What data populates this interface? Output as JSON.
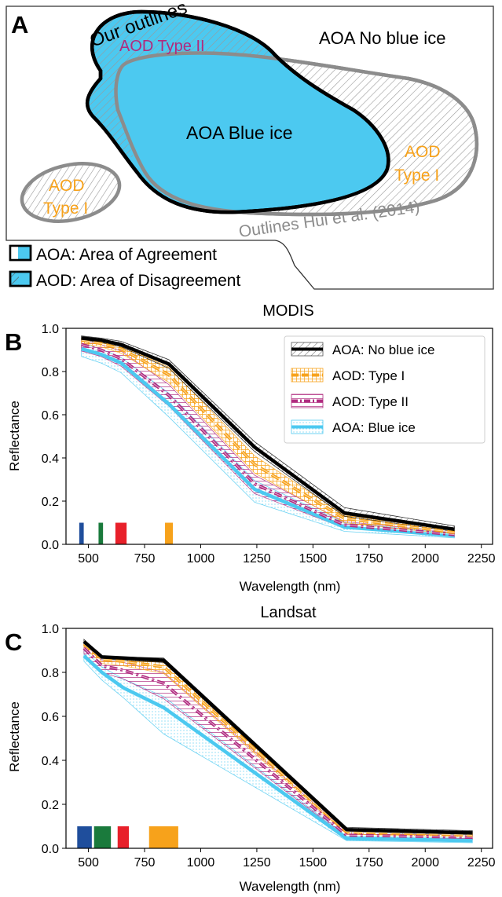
{
  "panel_a": {
    "letter": "A",
    "our_outlines": "Our outlines",
    "aod_type2": "AOD Type II",
    "aoa_no_blue_ice": "AOA No blue ice",
    "aoa_blue_ice": "AOA Blue ice",
    "aod_type1_right_line1": "AOD",
    "aod_type1_right_line2": "Type I",
    "aod_type1_left_line1": "AOD",
    "aod_type1_left_line2": "Type I",
    "outlines_hui": "Outlines Hui et al. (2014)",
    "legend_aoa": "AOA: Area of Agreement",
    "legend_aod": "AOD: Area of Disagreement",
    "colors": {
      "blue_ice": "#4cc9f0",
      "outline_ours": "#000000",
      "outline_hui": "#8c8c8c",
      "type1_text": "#f7a21b",
      "type2_text": "#b02a7f"
    }
  },
  "chart_data": [
    {
      "type": "line",
      "letter": "B",
      "title": "MODIS",
      "xlabel": "Wavelength (nm)",
      "ylabel": "Reflectance",
      "xlim": [
        400,
        2300
      ],
      "ylim": [
        0.0,
        1.0
      ],
      "xticks": [
        500,
        750,
        1000,
        1250,
        1500,
        1750,
        2000,
        2250
      ],
      "yticks": [
        0.0,
        0.2,
        0.4,
        0.6,
        0.8,
        1.0
      ],
      "x": [
        469,
        555,
        645,
        858,
        1240,
        1640,
        2130
      ],
      "series": [
        {
          "name": "AOA: No blue ice",
          "color": "#000000",
          "style": "solid",
          "values": [
            0.955,
            0.945,
            0.925,
            0.835,
            0.45,
            0.145,
            0.07
          ],
          "band_lo": [
            0.945,
            0.935,
            0.915,
            0.815,
            0.43,
            0.13,
            0.06
          ],
          "band_hi": [
            0.965,
            0.955,
            0.94,
            0.855,
            0.475,
            0.17,
            0.085
          ]
        },
        {
          "name": "AOD: Type I",
          "color": "#f7a21b",
          "style": "dashed",
          "values": [
            0.945,
            0.93,
            0.905,
            0.785,
            0.37,
            0.12,
            0.055
          ],
          "band_lo": [
            0.93,
            0.915,
            0.885,
            0.75,
            0.33,
            0.1,
            0.045
          ],
          "band_hi": [
            0.955,
            0.94,
            0.92,
            0.82,
            0.41,
            0.135,
            0.065
          ]
        },
        {
          "name": "AOD: Type II",
          "color": "#b02a7f",
          "style": "dashdot",
          "values": [
            0.925,
            0.9,
            0.86,
            0.69,
            0.28,
            0.09,
            0.045
          ],
          "band_lo": [
            0.895,
            0.87,
            0.825,
            0.64,
            0.235,
            0.075,
            0.035
          ],
          "band_hi": [
            0.945,
            0.925,
            0.895,
            0.74,
            0.32,
            0.105,
            0.055
          ]
        },
        {
          "name": "AOA: Blue ice",
          "color": "#4cc9f0",
          "style": "solid",
          "values": [
            0.905,
            0.88,
            0.84,
            0.65,
            0.255,
            0.08,
            0.04
          ],
          "band_lo": [
            0.87,
            0.84,
            0.795,
            0.59,
            0.195,
            0.06,
            0.03
          ],
          "band_hi": [
            0.93,
            0.905,
            0.865,
            0.7,
            0.295,
            0.1,
            0.05
          ]
        }
      ],
      "bands": [
        {
          "start": 459,
          "end": 479,
          "color": "#1f4e9c"
        },
        {
          "start": 545,
          "end": 565,
          "color": "#1a7a3c"
        },
        {
          "start": 620,
          "end": 670,
          "color": "#e8202a"
        },
        {
          "start": 841,
          "end": 876,
          "color": "#f7a21b"
        }
      ],
      "band_height": 0.1,
      "legend_position": "top-right"
    },
    {
      "type": "line",
      "letter": "C",
      "title": "Landsat",
      "xlabel": "Wavelength (nm)",
      "ylabel": "Reflectance",
      "xlim": [
        400,
        2300
      ],
      "ylim": [
        0.0,
        1.0
      ],
      "xticks": [
        500,
        750,
        1000,
        1250,
        1500,
        1750,
        2000,
        2250
      ],
      "yticks": [
        0.0,
        0.2,
        0.4,
        0.6,
        0.8,
        1.0
      ],
      "x": [
        480,
        560,
        655,
        835,
        1650,
        2210
      ],
      "series": [
        {
          "name": "AOA: No blue ice",
          "color": "#000000",
          "style": "solid",
          "values": [
            0.94,
            0.87,
            0.865,
            0.855,
            0.085,
            0.07
          ],
          "band_lo": [
            0.93,
            0.86,
            0.855,
            0.845,
            0.075,
            0.06
          ],
          "band_hi": [
            0.95,
            0.875,
            0.87,
            0.865,
            0.095,
            0.08
          ]
        },
        {
          "name": "AOD: Type I",
          "color": "#f7a21b",
          "style": "dashed",
          "values": [
            0.93,
            0.86,
            0.85,
            0.825,
            0.075,
            0.06
          ],
          "band_lo": [
            0.915,
            0.84,
            0.83,
            0.795,
            0.065,
            0.05
          ],
          "band_hi": [
            0.94,
            0.87,
            0.865,
            0.85,
            0.085,
            0.07
          ]
        },
        {
          "name": "AOD: Type II",
          "color": "#b02a7f",
          "style": "dashdot",
          "values": [
            0.91,
            0.83,
            0.81,
            0.75,
            0.06,
            0.05
          ],
          "band_lo": [
            0.885,
            0.8,
            0.77,
            0.68,
            0.05,
            0.04
          ],
          "band_hi": [
            0.93,
            0.855,
            0.845,
            0.8,
            0.075,
            0.06
          ]
        },
        {
          "name": "AOA: Blue ice",
          "color": "#4cc9f0",
          "style": "solid",
          "values": [
            0.875,
            0.8,
            0.73,
            0.64,
            0.045,
            0.035
          ],
          "band_lo": [
            0.85,
            0.765,
            0.685,
            0.52,
            0.035,
            0.025
          ],
          "band_hi": [
            0.9,
            0.825,
            0.77,
            0.69,
            0.055,
            0.045
          ]
        }
      ],
      "bands": [
        {
          "start": 450,
          "end": 515,
          "color": "#1f4e9c"
        },
        {
          "start": 525,
          "end": 600,
          "color": "#1a7a3c"
        },
        {
          "start": 630,
          "end": 680,
          "color": "#e8202a"
        },
        {
          "start": 770,
          "end": 900,
          "color": "#f7a21b"
        }
      ],
      "band_height": 0.1
    }
  ]
}
